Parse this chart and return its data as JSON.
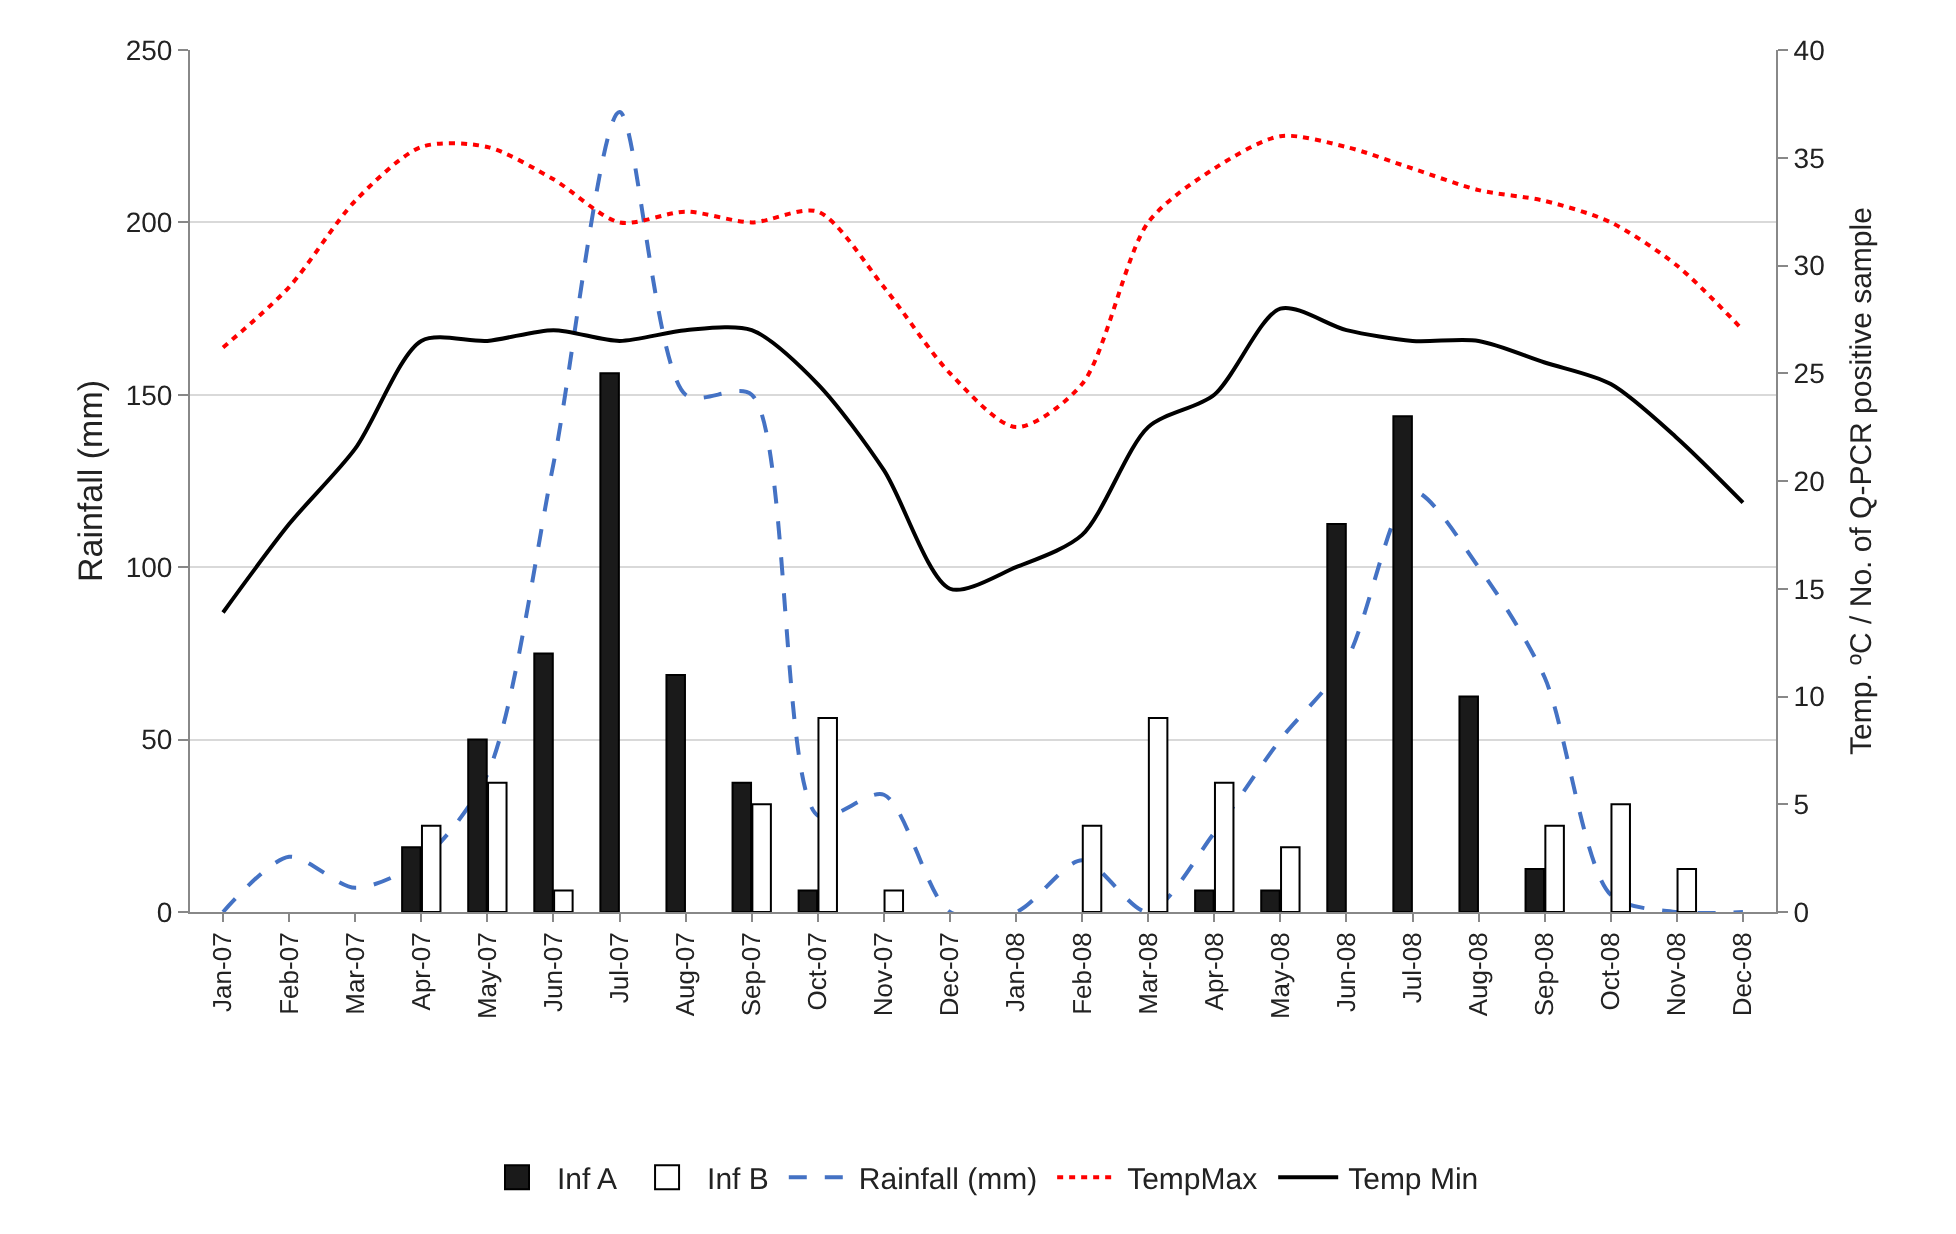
{
  "chart_data": {
    "type": "bar",
    "categories": [
      "Jan-07",
      "Feb-07",
      "Mar-07",
      "Apr-07",
      "May-07",
      "Jun-07",
      "Jul-07",
      "Aug-07",
      "Sep-07",
      "Oct-07",
      "Nov-07",
      "Dec-07",
      "Jan-08",
      "Feb-08",
      "Mar-08",
      "Apr-08",
      "May-08",
      "Jun-08",
      "Jul-08",
      "Aug-08",
      "Sep-08",
      "Oct-08",
      "Nov-08",
      "Dec-08"
    ],
    "ylabel": "Rainfall (mm)",
    "y2label": "Temp. ºC / No. of Q-PCR positive sample",
    "ylim": [
      0,
      250
    ],
    "yticks": [
      0,
      50,
      100,
      150,
      200,
      250
    ],
    "y2lim": [
      0,
      40
    ],
    "y2ticks": [
      0,
      5,
      10,
      15,
      20,
      25,
      30,
      35,
      40
    ],
    "grid": "y",
    "legend": "bottom",
    "marker": "none",
    "series": [
      {
        "name": "Inf A",
        "axis": "y2",
        "color": "#1a1a1a",
        "values": [
          null,
          null,
          null,
          3,
          8,
          12,
          25,
          11,
          6,
          1,
          null,
          null,
          null,
          null,
          null,
          1,
          1,
          18,
          23,
          10,
          2,
          null,
          null,
          null
        ]
      },
      {
        "name": "Inf B",
        "axis": "y2",
        "color": "#ffffff",
        "values": [
          null,
          null,
          null,
          4,
          6,
          1,
          null,
          null,
          5,
          9,
          1,
          null,
          null,
          4,
          9,
          6,
          3,
          null,
          null,
          null,
          4,
          5,
          2,
          null
        ]
      },
      {
        "name": "Rainfall (mm)",
        "type": "line",
        "line_style": "dashed",
        "color": "#4472c4",
        "values": [
          0,
          16,
          7,
          15,
          40,
          130,
          232,
          150,
          150,
          28,
          34,
          0,
          0,
          15,
          0,
          23,
          50,
          73,
          122,
          100,
          68,
          5,
          0,
          0
        ]
      },
      {
        "name": "TempMax",
        "type": "line",
        "axis": "y2",
        "line_style": "dotted",
        "color": "#ff0000",
        "values": [
          26.2,
          29,
          33,
          35.5,
          35.5,
          34,
          32,
          32.5,
          32,
          32.5,
          29,
          25,
          22.5,
          24.5,
          32,
          34.5,
          36,
          35.5,
          34.5,
          33.5,
          33,
          32,
          30,
          27
        ]
      },
      {
        "name": "Temp Min",
        "type": "line",
        "axis": "y2",
        "line_style": "solid",
        "color": "#000000",
        "values": [
          13.9,
          18,
          21.5,
          26.5,
          26.5,
          27,
          26.5,
          27,
          27,
          24.5,
          20.5,
          15,
          16,
          17.5,
          22.5,
          24,
          28,
          27,
          26.5,
          26.5,
          25.5,
          24.5,
          22,
          19
        ]
      }
    ]
  }
}
